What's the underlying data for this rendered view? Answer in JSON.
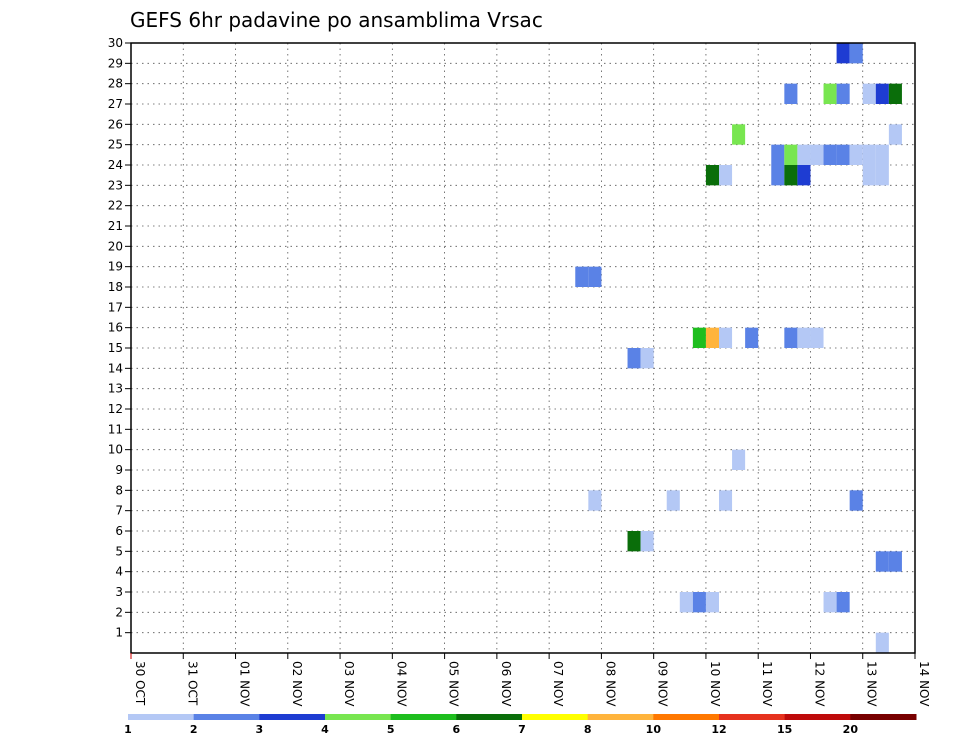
{
  "chart_data": {
    "type": "heatmap",
    "title": "GEFS 6hr padavine po ansamblima Vrsac",
    "x_tick_labels": [
      "30 OCT",
      "31 OCT",
      "01 NOV",
      "02 NOV",
      "03 NOV",
      "04 NOV",
      "05 NOV",
      "06 NOV",
      "07 NOV",
      "08 NOV",
      "09 NOV",
      "10 NOV",
      "11 NOV",
      "12 NOV",
      "13 NOV",
      "14 NOV"
    ],
    "y_tick_labels": [
      "1",
      "2",
      "3",
      "4",
      "5",
      "6",
      "7",
      "8",
      "9",
      "10",
      "11",
      "12",
      "13",
      "14",
      "15",
      "16",
      "17",
      "18",
      "19",
      "20",
      "21",
      "22",
      "23",
      "24",
      "25",
      "26",
      "27",
      "28",
      "29",
      "30"
    ],
    "x_range_days": [
      0,
      15
    ],
    "y_range": [
      0,
      30
    ],
    "cell_width_days": 0.25,
    "grid": "dotted",
    "legend": {
      "position": "bottom",
      "levels": [
        "1",
        "2",
        "3",
        "4",
        "5",
        "6",
        "7",
        "8",
        "10",
        "12",
        "15",
        "20"
      ],
      "colors": [
        "#b4c8f5",
        "#5a82e6",
        "#1e3cd2",
        "#78e650",
        "#1ebe1e",
        "#0a6e0a",
        "#ffff00",
        "#ffb43c",
        "#ff7800",
        "#e6321e",
        "#be0a0a",
        "#780000"
      ]
    },
    "cells": [
      {
        "day": 13.75,
        "member": 30,
        "color": "#1e3cd2"
      },
      {
        "day": 14.0,
        "member": 30,
        "color": "#5a82e6"
      },
      {
        "day": 12.75,
        "member": 28,
        "color": "#5a82e6"
      },
      {
        "day": 13.5,
        "member": 28,
        "color": "#78e650"
      },
      {
        "day": 13.75,
        "member": 28,
        "color": "#5a82e6"
      },
      {
        "day": 14.25,
        "member": 28,
        "color": "#b4c8f5"
      },
      {
        "day": 14.5,
        "member": 28,
        "color": "#1e3cd2"
      },
      {
        "day": 14.75,
        "member": 28,
        "color": "#0a6e0a"
      },
      {
        "day": 11.75,
        "member": 26,
        "color": "#78e650"
      },
      {
        "day": 14.75,
        "member": 26,
        "color": "#b4c8f5"
      },
      {
        "day": 12.5,
        "member": 25,
        "color": "#5a82e6"
      },
      {
        "day": 12.75,
        "member": 25,
        "color": "#78e650"
      },
      {
        "day": 13.0,
        "member": 25,
        "color": "#b4c8f5"
      },
      {
        "day": 13.25,
        "member": 25,
        "color": "#b4c8f5"
      },
      {
        "day": 13.5,
        "member": 25,
        "color": "#5a82e6"
      },
      {
        "day": 13.75,
        "member": 25,
        "color": "#5a82e6"
      },
      {
        "day": 14.0,
        "member": 25,
        "color": "#b4c8f5"
      },
      {
        "day": 14.25,
        "member": 25,
        "color": "#b4c8f5"
      },
      {
        "day": 14.5,
        "member": 25,
        "color": "#b4c8f5"
      },
      {
        "day": 11.25,
        "member": 24,
        "color": "#0a6e0a"
      },
      {
        "day": 11.5,
        "member": 24,
        "color": "#b4c8f5"
      },
      {
        "day": 12.5,
        "member": 24,
        "color": "#5a82e6"
      },
      {
        "day": 12.75,
        "member": 24,
        "color": "#0a6e0a"
      },
      {
        "day": 13.0,
        "member": 24,
        "color": "#1e3cd2"
      },
      {
        "day": 14.25,
        "member": 24,
        "color": "#b4c8f5"
      },
      {
        "day": 14.5,
        "member": 24,
        "color": "#b4c8f5"
      },
      {
        "day": 8.75,
        "member": 19,
        "color": "#5a82e6"
      },
      {
        "day": 9.0,
        "member": 19,
        "color": "#5a82e6"
      },
      {
        "day": 11.0,
        "member": 16,
        "color": "#1ebe1e"
      },
      {
        "day": 11.25,
        "member": 16,
        "color": "#ffb43c"
      },
      {
        "day": 11.5,
        "member": 16,
        "color": "#b4c8f5"
      },
      {
        "day": 12.0,
        "member": 16,
        "color": "#5a82e6"
      },
      {
        "day": 12.75,
        "member": 16,
        "color": "#5a82e6"
      },
      {
        "day": 13.0,
        "member": 16,
        "color": "#b4c8f5"
      },
      {
        "day": 13.25,
        "member": 16,
        "color": "#b4c8f5"
      },
      {
        "day": 9.75,
        "member": 15,
        "color": "#5a82e6"
      },
      {
        "day": 10.0,
        "member": 15,
        "color": "#b4c8f5"
      },
      {
        "day": 11.75,
        "member": 10,
        "color": "#b4c8f5"
      },
      {
        "day": 9.0,
        "member": 8,
        "color": "#b4c8f5"
      },
      {
        "day": 10.5,
        "member": 8,
        "color": "#b4c8f5"
      },
      {
        "day": 11.5,
        "member": 8,
        "color": "#b4c8f5"
      },
      {
        "day": 14.0,
        "member": 8,
        "color": "#5a82e6"
      },
      {
        "day": 9.75,
        "member": 6,
        "color": "#0a6e0a"
      },
      {
        "day": 10.0,
        "member": 6,
        "color": "#b4c8f5"
      },
      {
        "day": 14.75,
        "member": 5,
        "color": "#5a82e6"
      },
      {
        "day": 14.5,
        "member": 5,
        "color": "#5a82e6"
      },
      {
        "day": 10.75,
        "member": 3,
        "color": "#b4c8f5"
      },
      {
        "day": 11.0,
        "member": 3,
        "color": "#5a82e6"
      },
      {
        "day": 11.25,
        "member": 3,
        "color": "#b4c8f5"
      },
      {
        "day": 13.5,
        "member": 3,
        "color": "#b4c8f5"
      },
      {
        "day": 13.75,
        "member": 3,
        "color": "#5a82e6"
      },
      {
        "day": 14.5,
        "member": 1,
        "color": "#b4c8f5"
      }
    ]
  }
}
